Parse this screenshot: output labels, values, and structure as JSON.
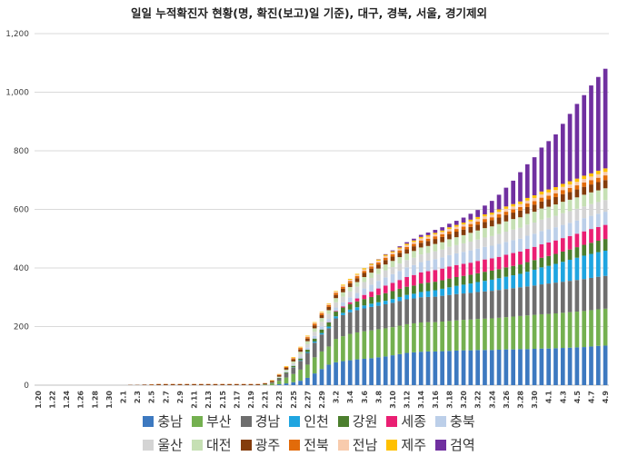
{
  "chart_data": {
    "type": "bar",
    "stacked": true,
    "title": "일일 누적확진자 현황(명, 확진(보고)일 기준), 대구, 경북, 서울, 경기제외",
    "ylim": [
      0,
      1200
    ],
    "yticks": [
      "0",
      "200",
      "400",
      "600",
      "800",
      "1,000",
      "1,200"
    ],
    "ytick_values": [
      0,
      200,
      400,
      600,
      800,
      1000,
      1200
    ],
    "grid": true,
    "legend_position": "bottom",
    "categories": [
      "1.20",
      "1.21",
      "1.22",
      "1.23",
      "1.24",
      "1.25",
      "1.26",
      "1.27",
      "1.28",
      "1.29",
      "1.30",
      "1.31",
      "2.1",
      "2.2",
      "2.3",
      "2.4",
      "2.5",
      "2.6",
      "2.7",
      "2.8",
      "2.9",
      "2.10",
      "2.11",
      "2.12",
      "2.13",
      "2.14",
      "2.15",
      "2.16",
      "2.17",
      "2.18",
      "2.19",
      "2.20",
      "2.21",
      "2.22",
      "2.23",
      "2.24",
      "2.25",
      "2.26",
      "2.27",
      "2.28",
      "2.29",
      "3.1",
      "3.2",
      "3.3",
      "3.4",
      "3.5",
      "3.6",
      "3.7",
      "3.8",
      "3.9",
      "3.10",
      "3.11",
      "3.12",
      "3.13",
      "3.14",
      "3.15",
      "3.16",
      "3.17",
      "3.18",
      "3.19",
      "3.20",
      "3.21",
      "3.22",
      "3.23",
      "3.24",
      "3.25",
      "3.26",
      "3.27",
      "3.28",
      "3.29",
      "3.30",
      "3.31",
      "4.1",
      "4.2",
      "4.3",
      "4.4",
      "4.5",
      "4.6",
      "4.7",
      "4.8",
      "4.9"
    ],
    "xtick_labels": [
      "1.20",
      "1.22",
      "1.24",
      "1.26",
      "1.28",
      "1.30",
      "2.1",
      "2.3",
      "2.5",
      "2.7",
      "2.9",
      "2.11",
      "2.13",
      "2.15",
      "2.17",
      "2.19",
      "2.21",
      "2.23",
      "2.25",
      "2.27",
      "2.29",
      "3.2",
      "3.4",
      "3.6",
      "3.8",
      "3.10",
      "3.12",
      "3.14",
      "3.16",
      "3.18",
      "3.20",
      "3.22",
      "3.24",
      "3.26",
      "3.28",
      "3.30",
      "4.1",
      "4.3",
      "4.5",
      "4.7",
      "4.9"
    ],
    "series": [
      {
        "name": "충남",
        "color": "#3d79c0",
        "values": [
          0,
          0,
          0,
          0,
          0,
          0,
          0,
          0,
          0,
          0,
          0,
          0,
          0,
          0,
          0,
          0,
          0,
          0,
          0,
          0,
          0,
          0,
          0,
          0,
          0,
          0,
          0,
          0,
          0,
          0,
          0,
          0,
          0,
          0,
          3,
          6,
          10,
          15,
          25,
          40,
          55,
          70,
          78,
          82,
          85,
          88,
          90,
          92,
          95,
          98,
          102,
          106,
          110,
          112,
          114,
          115,
          115,
          116,
          117,
          118,
          119,
          119,
          120,
          120,
          120,
          121,
          122,
          122,
          123,
          123,
          124,
          125,
          125,
          126,
          127,
          128,
          129,
          130,
          132,
          134,
          135
        ]
      },
      {
        "name": "부산",
        "color": "#74b050",
        "values": [
          0,
          0,
          0,
          0,
          0,
          0,
          0,
          0,
          0,
          0,
          0,
          0,
          0,
          0,
          0,
          0,
          0,
          0,
          0,
          0,
          0,
          0,
          0,
          0,
          0,
          0,
          0,
          0,
          0,
          0,
          0,
          0,
          2,
          5,
          12,
          20,
          28,
          38,
          45,
          55,
          60,
          62,
          80,
          85,
          90,
          92,
          94,
          95,
          96,
          96,
          96,
          97,
          98,
          99,
          100,
          100,
          100,
          101,
          102,
          103,
          104,
          105,
          106,
          107,
          108,
          109,
          110,
          112,
          113,
          115,
          116,
          117,
          118,
          119,
          120,
          121,
          122,
          123,
          124,
          125,
          126
        ]
      },
      {
        "name": "경남",
        "color": "#6e6e6e",
        "values": [
          0,
          0,
          0,
          0,
          0,
          0,
          0,
          0,
          0,
          0,
          0,
          0,
          0,
          0,
          0,
          0,
          0,
          0,
          0,
          0,
          0,
          0,
          0,
          0,
          0,
          0,
          0,
          0,
          0,
          0,
          0,
          0,
          1,
          3,
          8,
          15,
          22,
          30,
          40,
          50,
          58,
          62,
          70,
          72,
          74,
          76,
          78,
          80,
          80,
          82,
          83,
          84,
          85,
          85,
          86,
          86,
          87,
          88,
          89,
          90,
          90,
          91,
          92,
          93,
          94,
          95,
          96,
          97,
          98,
          99,
          100,
          102,
          104,
          105,
          106,
          107,
          108,
          109,
          110,
          111,
          112
        ]
      },
      {
        "name": "인천",
        "color": "#1fa5e0",
        "values": [
          0,
          0,
          0,
          0,
          0,
          0,
          0,
          0,
          0,
          0,
          0,
          0,
          0,
          0,
          0,
          0,
          0,
          0,
          0,
          0,
          0,
          0,
          0,
          0,
          0,
          0,
          0,
          0,
          0,
          0,
          0,
          0,
          0,
          0,
          0,
          0,
          1,
          2,
          3,
          4,
          5,
          6,
          7,
          8,
          9,
          10,
          10,
          11,
          12,
          12,
          13,
          14,
          15,
          16,
          18,
          20,
          22,
          24,
          26,
          28,
          30,
          32,
          34,
          36,
          38,
          40,
          42,
          44,
          46,
          50,
          54,
          58,
          60,
          64,
          68,
          72,
          76,
          80,
          82,
          84,
          86
        ]
      },
      {
        "name": "강원",
        "color": "#4c7f2e",
        "values": [
          0,
          0,
          0,
          0,
          0,
          0,
          0,
          0,
          0,
          0,
          0,
          0,
          0,
          0,
          0,
          0,
          0,
          0,
          0,
          0,
          0,
          0,
          0,
          0,
          0,
          0,
          0,
          0,
          0,
          0,
          0,
          0,
          0,
          1,
          2,
          3,
          5,
          6,
          8,
          10,
          12,
          14,
          16,
          18,
          19,
          20,
          22,
          23,
          25,
          26,
          27,
          28,
          28,
          28,
          29,
          29,
          29,
          29,
          30,
          30,
          30,
          30,
          30,
          31,
          31,
          31,
          32,
          32,
          32,
          33,
          33,
          33,
          34,
          34,
          35,
          35,
          36,
          37,
          38,
          39,
          40
        ]
      },
      {
        "name": "세종",
        "color": "#ea1f73",
        "values": [
          0,
          0,
          0,
          0,
          0,
          0,
          0,
          0,
          0,
          0,
          0,
          0,
          0,
          0,
          0,
          0,
          0,
          0,
          0,
          0,
          0,
          0,
          0,
          0,
          0,
          0,
          0,
          0,
          0,
          0,
          0,
          0,
          0,
          0,
          0,
          0,
          0,
          0,
          0,
          0,
          0,
          1,
          2,
          4,
          6,
          10,
          14,
          18,
          22,
          26,
          28,
          30,
          33,
          36,
          38,
          39,
          40,
          40,
          41,
          41,
          41,
          41,
          42,
          42,
          42,
          42,
          43,
          44,
          44,
          45,
          45,
          46,
          46,
          46,
          46,
          46,
          46,
          46,
          47,
          47,
          48
        ]
      },
      {
        "name": "충북",
        "color": "#bccfe9",
        "values": [
          0,
          0,
          0,
          0,
          0,
          0,
          0,
          0,
          0,
          0,
          0,
          0,
          0,
          0,
          0,
          0,
          0,
          0,
          0,
          0,
          0,
          0,
          0,
          0,
          0,
          0,
          0,
          0,
          0,
          0,
          0,
          0,
          0,
          0,
          1,
          2,
          3,
          5,
          7,
          9,
          10,
          11,
          12,
          14,
          17,
          19,
          22,
          24,
          26,
          28,
          30,
          31,
          33,
          34,
          35,
          36,
          37,
          38,
          39,
          40,
          41,
          42,
          42,
          43,
          43,
          44,
          44,
          44,
          44,
          45,
          45,
          45,
          45,
          45,
          45,
          45,
          45,
          45,
          45,
          45,
          45
        ]
      },
      {
        "name": "울산",
        "color": "#d4d4d4",
        "values": [
          0,
          0,
          0,
          0,
          0,
          0,
          0,
          0,
          0,
          0,
          0,
          0,
          0,
          0,
          0,
          0,
          0,
          0,
          0,
          0,
          0,
          0,
          0,
          0,
          0,
          0,
          0,
          0,
          0,
          0,
          0,
          0,
          0,
          0,
          1,
          3,
          6,
          10,
          12,
          14,
          16,
          17,
          18,
          19,
          20,
          21,
          22,
          23,
          23,
          24,
          24,
          25,
          25,
          25,
          26,
          26,
          27,
          27,
          28,
          28,
          29,
          30,
          31,
          32,
          33,
          34,
          35,
          36,
          37,
          38,
          38,
          39,
          39,
          39,
          40,
          40,
          40,
          40,
          40,
          40,
          40
        ]
      },
      {
        "name": "대전",
        "color": "#c6e0b4",
        "values": [
          0,
          0,
          0,
          0,
          0,
          0,
          0,
          0,
          0,
          0,
          0,
          0,
          0,
          0,
          0,
          0,
          0,
          0,
          0,
          0,
          0,
          0,
          0,
          0,
          0,
          0,
          0,
          0,
          0,
          0,
          0,
          0,
          0,
          1,
          2,
          4,
          6,
          8,
          10,
          12,
          13,
          13,
          14,
          15,
          15,
          16,
          17,
          18,
          19,
          20,
          21,
          22,
          22,
          23,
          24,
          24,
          25,
          25,
          26,
          27,
          28,
          30,
          31,
          32,
          33,
          34,
          35,
          36,
          36,
          37,
          37,
          38,
          38,
          39,
          39,
          39,
          39,
          40,
          40,
          40,
          40
        ]
      },
      {
        "name": "광주",
        "color": "#843c0c",
        "values": [
          0,
          0,
          0,
          0,
          0,
          0,
          0,
          0,
          0,
          0,
          0,
          0,
          0,
          1,
          1,
          2,
          2,
          3,
          3,
          3,
          3,
          3,
          3,
          3,
          3,
          3,
          3,
          3,
          3,
          3,
          3,
          3,
          3,
          4,
          5,
          6,
          7,
          8,
          9,
          10,
          10,
          11,
          11,
          12,
          13,
          13,
          14,
          14,
          14,
          15,
          15,
          15,
          15,
          16,
          16,
          17,
          17,
          18,
          18,
          19,
          19,
          20,
          20,
          21,
          21,
          22,
          22,
          22,
          23,
          23,
          24,
          24,
          25,
          25,
          26,
          26,
          27,
          27,
          27,
          28,
          28
        ]
      },
      {
        "name": "전북",
        "color": "#e26b0a",
        "values": [
          0,
          0,
          0,
          0,
          0,
          0,
          0,
          0,
          0,
          0,
          0,
          0,
          0,
          0,
          0,
          0,
          1,
          1,
          1,
          1,
          1,
          1,
          1,
          1,
          1,
          1,
          1,
          1,
          1,
          1,
          1,
          1,
          1,
          2,
          2,
          3,
          4,
          5,
          5,
          6,
          6,
          6,
          7,
          7,
          7,
          7,
          7,
          7,
          7,
          8,
          8,
          8,
          8,
          8,
          8,
          8,
          9,
          9,
          9,
          9,
          10,
          10,
          10,
          10,
          10,
          11,
          11,
          11,
          12,
          12,
          12,
          13,
          13,
          13,
          14,
          14,
          14,
          15,
          15,
          15,
          16
        ]
      },
      {
        "name": "전남",
        "color": "#f8cbad",
        "values": [
          0,
          0,
          0,
          0,
          0,
          0,
          0,
          0,
          0,
          0,
          0,
          0,
          0,
          0,
          0,
          0,
          0,
          0,
          0,
          0,
          0,
          0,
          0,
          0,
          0,
          0,
          0,
          0,
          0,
          0,
          0,
          0,
          0,
          0,
          1,
          1,
          2,
          2,
          3,
          3,
          3,
          4,
          4,
          4,
          5,
          5,
          5,
          5,
          6,
          6,
          6,
          6,
          6,
          7,
          7,
          7,
          7,
          8,
          8,
          8,
          8,
          9,
          9,
          9,
          9,
          9,
          10,
          10,
          10,
          10,
          11,
          11,
          11,
          11,
          11,
          12,
          12,
          12,
          12,
          12,
          12
        ]
      },
      {
        "name": "제주",
        "color": "#ffc000",
        "values": [
          0,
          0,
          0,
          0,
          0,
          0,
          0,
          0,
          0,
          0,
          0,
          0,
          0,
          0,
          0,
          0,
          0,
          0,
          0,
          0,
          0,
          0,
          0,
          0,
          0,
          0,
          0,
          0,
          0,
          0,
          0,
          0,
          0,
          1,
          1,
          2,
          2,
          2,
          2,
          2,
          2,
          2,
          2,
          3,
          3,
          3,
          4,
          4,
          4,
          4,
          4,
          4,
          5,
          5,
          5,
          5,
          5,
          5,
          6,
          6,
          6,
          6,
          7,
          7,
          7,
          8,
          8,
          8,
          9,
          9,
          9,
          10,
          10,
          10,
          10,
          11,
          11,
          11,
          11,
          12,
          12
        ]
      },
      {
        "name": "검역",
        "color": "#7030a0",
        "values": [
          0,
          0,
          0,
          0,
          0,
          0,
          0,
          0,
          0,
          0,
          0,
          0,
          0,
          0,
          0,
          0,
          0,
          0,
          0,
          0,
          0,
          0,
          0,
          0,
          0,
          0,
          0,
          0,
          0,
          0,
          0,
          0,
          0,
          0,
          0,
          0,
          0,
          0,
          0,
          0,
          0,
          0,
          0,
          0,
          0,
          0,
          0,
          1,
          1,
          2,
          3,
          4,
          5,
          6,
          7,
          9,
          10,
          11,
          12,
          14,
          17,
          20,
          24,
          30,
          40,
          50,
          64,
          80,
          100,
          115,
          130,
          150,
          165,
          180,
          205,
          230,
          255,
          275,
          300,
          320,
          340
        ]
      }
    ]
  }
}
